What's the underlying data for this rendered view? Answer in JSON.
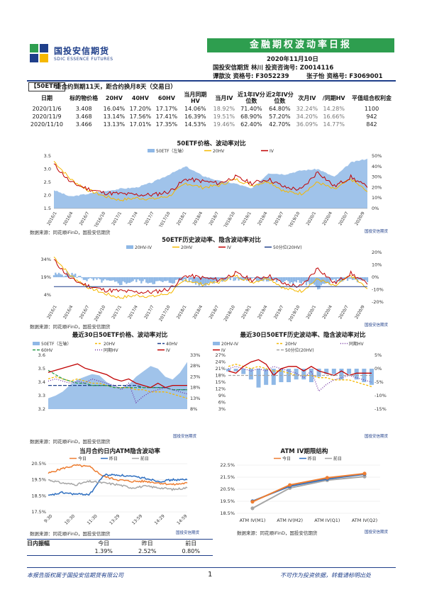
{
  "header": {
    "logo_cn": "国投安信期货",
    "logo_en": "SDIC ESSENCE FUTURES",
    "banner": "金融期权波动率日报",
    "date": "2020年11月10日",
    "line1": "国投安信期货 林川 投资咨询号: Z0014116",
    "line2a": "谭歆汝 资格号: F3052239",
    "line2b": "张子怡 资格号: F3069001"
  },
  "section": {
    "tag": "【50ETF】",
    "subtitle": "距合约到期11天，距合约换月8天（交易日）"
  },
  "table": {
    "headers": [
      "日期",
      "标的物价格",
      "20HV",
      "40HV",
      "60HV",
      "当月同期HV",
      "当月IV",
      "近1年IV分位数",
      "近2年IV分位数",
      "次月IV",
      "/同期HV",
      "平值组合权利金"
    ],
    "rows": [
      [
        "2020/11/6",
        "3.408",
        "16.04%",
        "17.20%",
        "17.17%",
        "14.06%",
        "18.92%",
        "71.40%",
        "64.80%",
        "32.24%",
        "14.28%",
        "1100"
      ],
      [
        "2020/11/9",
        "3.468",
        "13.14%",
        "17.56%",
        "17.41%",
        "16.39%",
        "19.51%",
        "68.90%",
        "57.20%",
        "34.20%",
        "16.66%",
        "942"
      ],
      [
        "2020/11/10",
        "3.466",
        "13.13%",
        "17.01%",
        "17.35%",
        "14.53%",
        "19.46%",
        "62.40%",
        "42.70%",
        "36.09%",
        "14.77%",
        "842"
      ]
    ]
  },
  "chart1": {
    "title": "50ETF价格、波动率对比",
    "legend": [
      "50ETF（左轴）",
      "20HV",
      "IV"
    ],
    "source": "数据来源：同花顺iFinD，国投安信期货"
  },
  "chart2": {
    "title": "50ETF历史波动率、隐含波动率对比",
    "legend": [
      "20HV-IV",
      "20HV",
      "IV",
      "50分位(20HV)"
    ],
    "source": "数据来源：同花顺iFinD，国投安信期货"
  },
  "chart3": {
    "title": "最近30日50ETF价格、波动率对比",
    "legend": [
      "50ETF（左轴）",
      "20HV",
      "40HV",
      "60HV",
      "同期HV",
      "IV"
    ]
  },
  "chart4": {
    "title": "最近30日50ETF历史波动率、隐含波动率对比",
    "legend": [
      "20HV-IV",
      "20HV",
      "同期HV",
      "IV",
      "50分位(20HV)"
    ]
  },
  "source_mid": "数据来源：同花顺iFinD，国投安信期货",
  "chart5": {
    "title": "当月合约日内ATM隐含波动率",
    "legend": [
      "今日",
      "昨日",
      "前日"
    ],
    "source": "数据来源：同花顺iFinD，国投安信期货"
  },
  "chart6": {
    "title": "ATM IV期限结构",
    "legend": [
      "今日",
      "昨日",
      "前日"
    ],
    "source": "数据来源：同花顺iFinD，国投安信期货"
  },
  "mini_logo": "国投安信期货",
  "range_table": {
    "headers": [
      "日内振幅",
      "今日",
      "昨日",
      "前日"
    ],
    "values": [
      "",
      "1.39%",
      "2.52%",
      "0.80%"
    ]
  },
  "footer": {
    "left": "本报告版权属于国投安信期货有限公司",
    "page": "1",
    "right": "不可作为投资依据，转载请标明出处"
  },
  "colors": {
    "brand": "#1f3f8a",
    "banner": "#2e9e4f",
    "iv": "#c00000",
    "hv20": "#f5b800",
    "area": "#8fb8e6",
    "blue": "#2f6fc0",
    "grey": "#a6a6a6",
    "orange": "#ed7d31"
  },
  "chart_data": [
    {
      "type": "area",
      "name": "50ETF价格、波动率对比",
      "x_ticks": [
        "2016/1",
        "2016/4",
        "2016/7",
        "2016/10",
        "2017/1",
        "2017/4",
        "2017/7",
        "2017/10",
        "2018/1",
        "2018/4",
        "2018/7",
        "2018/10",
        "2019/1",
        "2019/4",
        "2019/7",
        "2019/10",
        "2020/1",
        "2020/4",
        "2020/7",
        "2020/9"
      ],
      "ylim_left": [
        1.5,
        3.5
      ],
      "y_ticks_left": [
        "1.5",
        "2.0",
        "2.5",
        "3.0",
        "3.5"
      ],
      "ylim_right": [
        0,
        50
      ],
      "y_ticks_right": [
        "0%",
        "10%",
        "20%",
        "30%",
        "40%",
        "50%"
      ],
      "series": [
        {
          "name": "50ETF（左轴）",
          "values": [
            2.2,
            1.95,
            2.05,
            2.15,
            2.25,
            2.3,
            2.5,
            2.8,
            3.1,
            2.75,
            2.55,
            2.45,
            2.25,
            2.85,
            2.8,
            2.95,
            3.0,
            2.7,
            3.25,
            3.4
          ]
        },
        {
          "name": "20HV",
          "values": [
            45,
            28,
            18,
            12,
            8,
            10,
            9,
            12,
            24,
            20,
            22,
            28,
            22,
            26,
            16,
            14,
            25,
            18,
            28,
            16
          ]
        },
        {
          "name": "IV",
          "values": [
            42,
            25,
            19,
            15,
            14,
            13,
            13,
            16,
            28,
            26,
            24,
            30,
            24,
            28,
            20,
            18,
            35,
            21,
            30,
            20
          ]
        }
      ]
    },
    {
      "type": "line",
      "name": "50ETF历史波动率、隐含波动率对比",
      "x_ticks": [
        "2016/1",
        "2016/4",
        "2016/7",
        "2016/10",
        "2017/1",
        "2017/4",
        "2017/7",
        "2017/10",
        "2018/1",
        "2018/4",
        "2018/7",
        "2018/10",
        "2019/1",
        "2019/4",
        "2019/7",
        "2019/10",
        "2020/1",
        "2020/4",
        "2020/7",
        "2020/9"
      ],
      "y_ticks_left": [
        "4%",
        "19%",
        "34%"
      ],
      "y_ticks_right": [
        "-20%",
        "-10%",
        "0%",
        "10%",
        "20%"
      ],
      "series": [
        {
          "name": "20HV-IV",
          "values": [
            2,
            3,
            -2,
            -3,
            -5,
            -3,
            -4,
            -4,
            -2,
            -6,
            -2,
            -2,
            -2,
            -2,
            -4,
            -4,
            -8,
            -3,
            -2,
            -4
          ]
        },
        {
          "name": "20HV",
          "values": [
            45,
            28,
            18,
            12,
            8,
            10,
            9,
            12,
            24,
            20,
            22,
            28,
            22,
            26,
            16,
            14,
            25,
            18,
            28,
            16
          ]
        },
        {
          "name": "IV",
          "values": [
            42,
            25,
            19,
            15,
            14,
            13,
            13,
            16,
            28,
            26,
            24,
            30,
            24,
            28,
            20,
            18,
            35,
            21,
            30,
            20
          ]
        },
        {
          "name": "50分位(20HV)",
          "values": [
            18,
            18,
            18,
            18,
            18,
            18,
            18,
            18,
            18,
            18,
            18,
            18,
            18,
            18,
            18,
            18,
            18,
            18,
            18,
            18
          ]
        }
      ]
    },
    {
      "type": "line",
      "name": "最近30日50ETF价格、波动率对比",
      "ylim_left": [
        3.2,
        3.6
      ],
      "y_ticks_left": [
        "3.2",
        "3.3",
        "3.4",
        "3.5",
        "3.6"
      ],
      "ylim_right": [
        8,
        33
      ],
      "y_ticks_right": [
        "8%",
        "13%",
        "18%",
        "23%",
        "28%",
        "33%"
      ],
      "series": [
        {
          "name": "50ETF（左轴）",
          "values": [
            3.28,
            3.3,
            3.33,
            3.38,
            3.42,
            3.44,
            3.46,
            3.45,
            3.4,
            3.37,
            3.36,
            3.38,
            3.44,
            3.48,
            3.52,
            3.5,
            3.44,
            3.42,
            3.47,
            3.55
          ]
        },
        {
          "name": "20HV",
          "values": [
            22,
            23,
            22,
            21,
            22,
            21,
            20,
            20,
            19,
            18,
            18,
            18,
            17,
            17,
            16,
            16,
            16,
            15,
            14,
            13
          ]
        },
        {
          "name": "40HV",
          "values": [
            19,
            19,
            19,
            19,
            19,
            19,
            19,
            19,
            19,
            19,
            19,
            19,
            19,
            18,
            18,
            18,
            18,
            17,
            17,
            17
          ]
        },
        {
          "name": "60HV",
          "values": [
            26,
            24,
            22,
            21,
            20,
            20,
            19,
            19,
            19,
            18,
            18,
            18,
            18,
            18,
            18,
            18,
            18,
            17,
            17,
            17
          ]
        },
        {
          "name": "同期HV",
          "values": [
            21,
            22,
            21,
            20,
            21,
            20,
            22,
            21,
            20,
            19,
            17,
            20,
            11,
            14,
            16,
            17,
            18,
            17,
            16,
            15
          ]
        },
        {
          "name": "IV",
          "values": [
            25,
            26,
            27,
            28,
            29,
            27,
            26,
            25,
            24,
            22,
            21,
            22,
            20,
            19,
            18,
            20,
            18,
            19,
            19,
            19
          ]
        }
      ]
    },
    {
      "type": "line",
      "name": "最近30日50ETF历史波动率、隐含波动率对比",
      "y_ticks_left": [
        "3%",
        "6%",
        "9%",
        "12%",
        "15%",
        "18%",
        "21%",
        "24%",
        "27%"
      ],
      "y_ticks_right": [
        "-15%",
        "-10%",
        "-5%",
        "0%",
        "5%"
      ],
      "series": [
        {
          "name": "20HV-IV",
          "values": [
            -1,
            -1,
            -2,
            -4,
            -7,
            -6,
            -6,
            -5,
            -5,
            -4,
            -4,
            -5,
            -3,
            -2,
            -2,
            -4,
            -2,
            -4,
            -5,
            -6
          ]
        },
        {
          "name": "20HV",
          "values": [
            22,
            23,
            22,
            21,
            22,
            21,
            20,
            20,
            19,
            18,
            18,
            18,
            17,
            17,
            16,
            16,
            16,
            15,
            14,
            13
          ]
        },
        {
          "name": "同期HV",
          "values": [
            21,
            22,
            21,
            20,
            21,
            20,
            22,
            21,
            20,
            19,
            17,
            20,
            11,
            14,
            16,
            17,
            18,
            17,
            16,
            15
          ]
        },
        {
          "name": "IV",
          "values": [
            20,
            19,
            22,
            24,
            25,
            23,
            18,
            21,
            22,
            22,
            20,
            22,
            20,
            19,
            18,
            20,
            18,
            19,
            19,
            19
          ]
        },
        {
          "name": "50分位(20HV)",
          "values": [
            18,
            18,
            18,
            18,
            18,
            18,
            18,
            18,
            18,
            18,
            18,
            18,
            18,
            18,
            18,
            18,
            18,
            18,
            18,
            18
          ]
        }
      ]
    },
    {
      "type": "line",
      "name": "当月合约日内ATM隐含波动率",
      "x_ticks": [
        "9:30",
        "10:30",
        "11:30",
        "13:29",
        "13:59",
        "14:29",
        "14:59"
      ],
      "ylim": [
        17.5,
        20.5
      ],
      "y_ticks": [
        "17.5%",
        "18.5%",
        "19.5%",
        "20.5%"
      ],
      "series": [
        {
          "name": "今日",
          "values": [
            19.9,
            20.2,
            20.4,
            20.3,
            19.7,
            19.5,
            19.4,
            19.4,
            19.3,
            19.2,
            19.3
          ]
        },
        {
          "name": "昨日",
          "values": [
            18.5,
            18.7,
            18.6,
            18.6,
            19.8,
            19.8,
            19.7,
            19.6,
            19.4,
            19.5,
            19.5
          ]
        },
        {
          "name": "前日",
          "values": [
            19.5,
            19.3,
            19.2,
            19.4,
            19.3,
            19.2,
            19.0,
            19.1,
            19.0,
            18.9,
            19.0
          ]
        }
      ]
    },
    {
      "type": "line",
      "name": "ATM IV期限结构",
      "categories": [
        "ATM IV(M1)",
        "ATM IV(M2)",
        "ATM IV(Q1)",
        "ATM IV(Q2)"
      ],
      "ylim": [
        18.5,
        22.5
      ],
      "y_ticks": [
        "18.5%",
        "19.5%",
        "20.5%",
        "21.5%",
        "22.5%"
      ],
      "series": [
        {
          "name": "今日",
          "values": [
            19.46,
            20.85,
            21.45,
            21.8
          ]
        },
        {
          "name": "昨日",
          "values": [
            19.51,
            20.75,
            21.35,
            21.75
          ]
        },
        {
          "name": "前日",
          "values": [
            18.92,
            20.6,
            21.25,
            21.55
          ]
        }
      ]
    }
  ]
}
